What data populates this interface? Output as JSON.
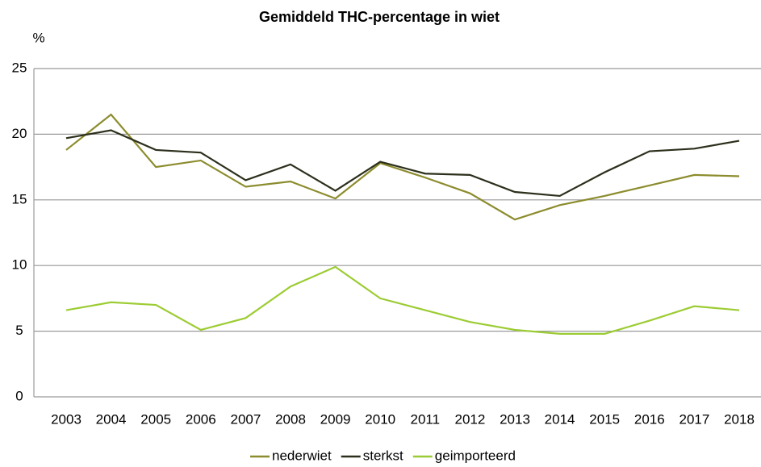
{
  "chart_data": {
    "type": "line",
    "title": "Gemiddeld THC-percentage in wiet",
    "y_label": "%",
    "categories": [
      "2003",
      "2004",
      "2005",
      "2006",
      "2007",
      "2008",
      "2009",
      "2010",
      "2011",
      "2012",
      "2013",
      "2014",
      "2015",
      "2016",
      "2017",
      "2018"
    ],
    "series": [
      {
        "name": "nederwiet",
        "color": "#8c8c2e",
        "values": [
          18.8,
          21.5,
          17.5,
          18.0,
          16.0,
          16.4,
          15.1,
          17.8,
          16.7,
          15.5,
          13.5,
          14.6,
          15.3,
          16.1,
          16.9,
          16.8
        ]
      },
      {
        "name": "sterkst",
        "color": "#2b2f1b",
        "values": [
          19.7,
          20.3,
          18.8,
          18.6,
          16.5,
          17.7,
          15.7,
          17.9,
          17.0,
          16.9,
          15.6,
          15.3,
          17.1,
          18.7,
          18.9,
          19.5
        ]
      },
      {
        "name": "geimporteerd",
        "color": "#9ccc33",
        "values": [
          6.6,
          7.2,
          7.0,
          5.1,
          6.0,
          8.4,
          9.9,
          7.5,
          6.6,
          5.7,
          5.1,
          4.8,
          4.8,
          5.8,
          6.9,
          6.6
        ]
      }
    ],
    "ylim": [
      0,
      25
    ],
    "yticks": [
      0,
      5,
      10,
      15,
      20,
      25
    ],
    "grid": true,
    "legend": "bottom"
  }
}
